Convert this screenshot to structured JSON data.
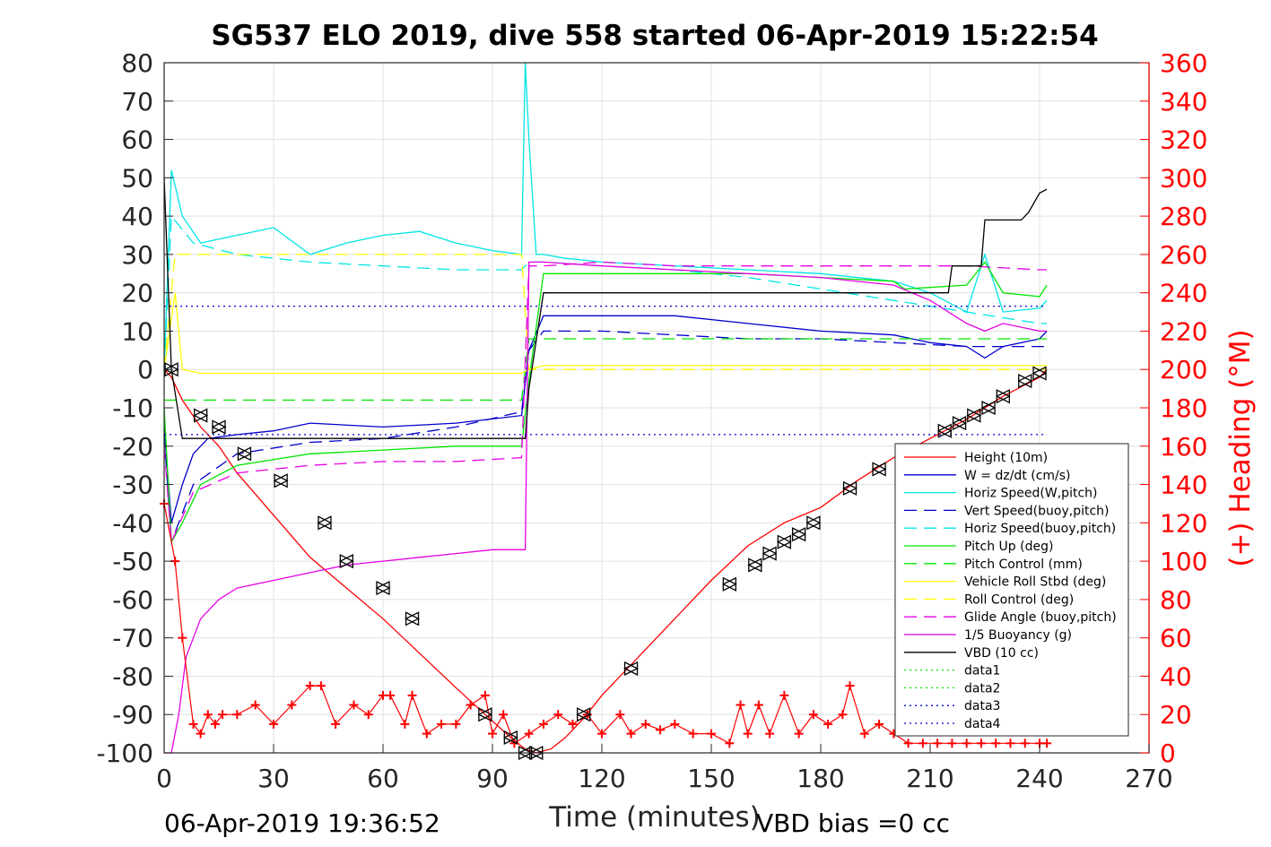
{
  "chart_data": {
    "type": "line",
    "title": "SG537 ELO 2019, dive 558 started 06-Apr-2019 15:22:54",
    "xlabel": "Time (minutes)",
    "ylabel_left": "",
    "ylabel_right": "(+) Heading (°M)",
    "xlim": [
      0,
      270
    ],
    "ylim_left": [
      -100,
      80
    ],
    "ylim_right": [
      0,
      360
    ],
    "x_ticks": [
      "0",
      "30",
      "60",
      "90",
      "120",
      "150",
      "180",
      "210",
      "240",
      "270"
    ],
    "y_left_ticks": [
      "-100",
      "-90",
      "-80",
      "-70",
      "-60",
      "-50",
      "-40",
      "-30",
      "-20",
      "-10",
      "0",
      "10",
      "20",
      "30",
      "40",
      "50",
      "60",
      "70",
      "80"
    ],
    "y_right_ticks": [
      "0",
      "20",
      "40",
      "60",
      "80",
      "100",
      "120",
      "140",
      "160",
      "180",
      "200",
      "220",
      "240",
      "260",
      "280",
      "300",
      "320",
      "340",
      "360"
    ],
    "grid": true,
    "legend_position": "right",
    "footer_left": "06-Apr-2019 19:36:52",
    "footer_right": "VBD bias =0 cc",
    "series": [
      {
        "name": "Height (10m)",
        "color": "#ff0000",
        "style": "solid",
        "x": [
          0,
          2,
          5,
          10,
          15,
          20,
          30,
          40,
          50,
          60,
          70,
          80,
          88,
          95,
          99,
          102,
          106,
          110,
          115,
          120,
          130,
          140,
          150,
          160,
          170,
          180,
          190,
          200,
          210,
          220,
          230,
          240,
          242
        ],
        "y": [
          0,
          -2,
          -8,
          -15,
          -20,
          -27,
          -38,
          -49,
          -57,
          -65,
          -74,
          -83,
          -90,
          -96,
          -99,
          -100,
          -99,
          -96,
          -91,
          -85,
          -75,
          -65,
          -55,
          -46,
          -40,
          -36,
          -29,
          -23,
          -18,
          -13,
          -7,
          -2,
          0
        ]
      },
      {
        "name": "W = dz/dt (cm/s)",
        "color": "#0000cc",
        "style": "solid",
        "x": [
          0,
          2,
          5,
          8,
          12,
          20,
          30,
          40,
          60,
          80,
          98,
          100,
          104,
          120,
          140,
          160,
          180,
          200,
          210,
          220,
          225,
          230,
          240,
          242
        ],
        "y": [
          -15,
          -40,
          -30,
          -22,
          -18,
          -17,
          -16,
          -14,
          -15,
          -14,
          -12,
          5,
          14,
          14,
          14,
          12,
          10,
          9,
          7,
          6,
          3,
          6,
          8,
          10
        ]
      },
      {
        "name": "Horiz Speed(W,pitch)",
        "color": "#00e5e5",
        "style": "solid",
        "x": [
          0,
          2,
          5,
          10,
          15,
          20,
          30,
          40,
          50,
          60,
          70,
          80,
          90,
          98,
          99,
          100,
          102,
          104,
          110,
          120,
          140,
          160,
          180,
          200,
          210,
          220,
          225,
          230,
          240,
          242
        ],
        "y": [
          0,
          52,
          40,
          33,
          34,
          35,
          37,
          30,
          33,
          35,
          36,
          33,
          31,
          30,
          80,
          60,
          30,
          30,
          29,
          28,
          27,
          26,
          25,
          23,
          20,
          15,
          30,
          15,
          16,
          18
        ]
      },
      {
        "name": "Vert Speed(buoy,pitch)",
        "color": "#0000cc",
        "style": "dashed",
        "x": [
          0,
          2,
          8,
          20,
          40,
          60,
          80,
          98,
          100,
          104,
          120,
          140,
          160,
          180,
          200,
          220,
          240,
          242
        ],
        "y": [
          -17,
          -45,
          -30,
          -22,
          -19,
          -18,
          -15,
          -11,
          5,
          10,
          10,
          9,
          8,
          8,
          7,
          6,
          6,
          6
        ]
      },
      {
        "name": "Horiz Speed(buoy,pitch)",
        "color": "#00e5e5",
        "style": "dashed",
        "x": [
          0,
          2,
          8,
          20,
          40,
          60,
          80,
          98,
          100,
          104,
          120,
          140,
          160,
          180,
          200,
          220,
          240,
          242
        ],
        "y": [
          0,
          40,
          33,
          30,
          28,
          27,
          26,
          26,
          28,
          28,
          27,
          26,
          24,
          21,
          18,
          15,
          12,
          12
        ]
      },
      {
        "name": "Pitch Up (deg)",
        "color": "#00e600",
        "style": "solid",
        "x": [
          0,
          2,
          5,
          10,
          20,
          40,
          60,
          80,
          98,
          100,
          104,
          120,
          140,
          160,
          180,
          200,
          203,
          220,
          225,
          230,
          240,
          242
        ],
        "y": [
          -10,
          -45,
          -40,
          -30,
          -25,
          -22,
          -21,
          -20,
          -20,
          -3,
          25,
          25,
          25,
          25,
          24,
          23,
          21,
          22,
          28,
          20,
          19,
          22
        ]
      },
      {
        "name": "Pitch Control (mm)",
        "color": "#00e600",
        "style": "dashed",
        "x": [
          0,
          3,
          20,
          40,
          60,
          80,
          98,
          100,
          104,
          120,
          140,
          160,
          180,
          200,
          220,
          240,
          242
        ],
        "y": [
          -8,
          -8,
          -8,
          -8,
          -8,
          -8,
          -8,
          8,
          8,
          8,
          8,
          8,
          8,
          8,
          8,
          8,
          8
        ]
      },
      {
        "name": "Vehicle Roll Stbd (deg)",
        "color": "#ffff00",
        "style": "solid",
        "x": [
          0,
          3,
          5,
          10,
          20,
          40,
          60,
          80,
          98,
          100,
          104,
          120,
          140,
          160,
          180,
          200,
          220,
          240,
          242
        ],
        "y": [
          0,
          20,
          0,
          -1,
          -1,
          -1,
          -1,
          -1,
          -1,
          0,
          1,
          1,
          1,
          1,
          1,
          1,
          1,
          1,
          1
        ]
      },
      {
        "name": "Roll Control (deg)",
        "color": "#ffff00",
        "style": "dashed",
        "x": [
          0,
          3,
          20,
          40,
          60,
          80,
          98,
          100,
          120,
          140,
          160,
          180,
          200,
          220,
          240,
          242
        ],
        "y": [
          0,
          30,
          30,
          30,
          30,
          30,
          30,
          0,
          0,
          0,
          0,
          0,
          0,
          0,
          0,
          0
        ]
      },
      {
        "name": "Glide Angle (buoy,pitch)",
        "color": "#e600e6",
        "style": "dashed",
        "x": [
          0,
          2,
          8,
          20,
          40,
          60,
          80,
          98,
          100,
          104,
          120,
          140,
          160,
          180,
          200,
          220,
          240,
          242
        ],
        "y": [
          -20,
          -45,
          -32,
          -27,
          -25,
          -24,
          -24,
          -23,
          27,
          27,
          28,
          27,
          27,
          27,
          27,
          27,
          26,
          26
        ]
      },
      {
        "name": "1/5 Buoyancy (g)",
        "color": "#e600e6",
        "style": "solid",
        "x": [
          0,
          2,
          4,
          6,
          10,
          15,
          20,
          30,
          40,
          50,
          60,
          70,
          80,
          90,
          99,
          100,
          104,
          120,
          140,
          160,
          180,
          200,
          210,
          220,
          225,
          230,
          240,
          242
        ],
        "y": [
          -100,
          -100,
          -90,
          -75,
          -65,
          -60,
          -57,
          -55,
          -53,
          -51,
          -50,
          -49,
          -48,
          -47,
          -47,
          28,
          28,
          27,
          26,
          25,
          24,
          22,
          18,
          12,
          10,
          12,
          10,
          10
        ]
      },
      {
        "name": "VBD (10 cc)",
        "color": "#000000",
        "style": "solid",
        "x": [
          0,
          2,
          5,
          98,
          99,
          100,
          104,
          110,
          120,
          140,
          160,
          180,
          200,
          215,
          216,
          224,
          225,
          235,
          237,
          240,
          242
        ],
        "y": [
          50,
          0,
          -18,
          -18,
          -18,
          -5,
          20,
          20,
          20,
          20,
          20,
          20,
          20,
          20,
          27,
          27,
          39,
          39,
          41,
          46,
          47
        ]
      },
      {
        "name": "data1",
        "color": "#00e600",
        "style": "dotted",
        "x": [],
        "y": []
      },
      {
        "name": "data2",
        "color": "#00e600",
        "style": "dotted",
        "x": [],
        "y": []
      },
      {
        "name": "data3",
        "color": "#0000cc",
        "style": "dotted",
        "x": [
          0,
          242
        ],
        "y": [
          16.5,
          16.5
        ]
      },
      {
        "name": "data4",
        "color": "#0000cc",
        "style": "dotted",
        "x": [
          0,
          242
        ],
        "y": [
          -17,
          -17
        ]
      }
    ],
    "heading_series": {
      "axis": "right",
      "color": "#ff0000",
      "marker": "+",
      "x": [
        0,
        3,
        5,
        8,
        10,
        12,
        14,
        16,
        20,
        25,
        30,
        35,
        40,
        43,
        47,
        52,
        56,
        60,
        62,
        66,
        68,
        72,
        76,
        80,
        84,
        88,
        90,
        93,
        96,
        100,
        104,
        108,
        112,
        116,
        120,
        125,
        128,
        132,
        136,
        140,
        145,
        150,
        155,
        158,
        160,
        163,
        166,
        170,
        174,
        178,
        182,
        186,
        188,
        192,
        196,
        200,
        204,
        208,
        212,
        216,
        220,
        224,
        228,
        232,
        236,
        240,
        242
      ],
      "y": [
        130,
        100,
        60,
        15,
        10,
        20,
        15,
        20,
        20,
        25,
        15,
        25,
        35,
        35,
        15,
        25,
        20,
        30,
        30,
        15,
        30,
        10,
        15,
        15,
        25,
        30,
        10,
        20,
        5,
        10,
        15,
        20,
        15,
        20,
        10,
        20,
        10,
        15,
        12,
        15,
        10,
        10,
        5,
        25,
        10,
        25,
        10,
        30,
        10,
        20,
        15,
        20,
        35,
        10,
        15,
        10,
        5,
        5,
        5,
        5,
        5,
        5,
        5,
        5,
        5,
        5,
        5
      ]
    },
    "markers": {
      "symbol": "triangles",
      "color": "#000000",
      "x": [
        2,
        10,
        15,
        22,
        32,
        44,
        50,
        60,
        68,
        88,
        95,
        99,
        102,
        115,
        128,
        155,
        162,
        166,
        170,
        174,
        178,
        188,
        196,
        214,
        218,
        222,
        226,
        230,
        236,
        240
      ],
      "y": [
        0,
        -12,
        -15,
        -22,
        -29,
        -40,
        -50,
        -57,
        -65,
        -90,
        -96,
        -100,
        -100,
        -90,
        -78,
        -56,
        -51,
        -48,
        -45,
        -43,
        -40,
        -31,
        -26,
        -16,
        -14,
        -12,
        -10,
        -7,
        -3,
        -1
      ]
    }
  }
}
